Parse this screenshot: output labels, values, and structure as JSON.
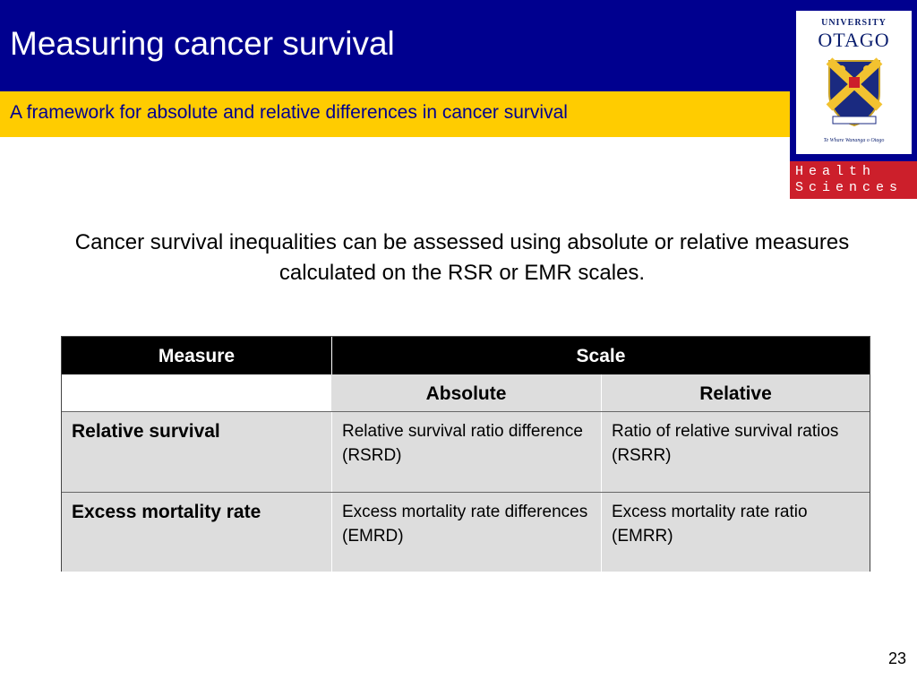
{
  "slide": {
    "title": "Measuring cancer survival",
    "subtitle": "A framework for absolute and relative differences in cancer survival",
    "intro": "Cancer survival inequalities can be assessed using absolute or relative measures calculated on the RSR or EMR scales.",
    "page_number": "23"
  },
  "logo": {
    "university": "UNIVERSITY",
    "name": "OTAGO",
    "motto": "Te Whare Wananga o Otago",
    "line1": "Health",
    "line2": "Sciences"
  },
  "table": {
    "header": {
      "measure": "Measure",
      "scale": "Scale"
    },
    "subheader": {
      "absolute": "Absolute",
      "relative": "Relative"
    },
    "rows": [
      {
        "measure": "Relative survival",
        "absolute": "Relative survival ratio difference (RSRD)",
        "relative": "Ratio of relative survival ratios (RSRR)"
      },
      {
        "measure": "Excess mortality rate",
        "absolute": "Excess mortality rate differences (EMRD)",
        "relative": "Excess mortality rate ratio (EMRR)"
      }
    ]
  },
  "colors": {
    "title_band": "#00008f",
    "subtitle_band": "#ffcc00",
    "health_sciences": "#cc1f2b",
    "table_grey": "#dddddd"
  }
}
